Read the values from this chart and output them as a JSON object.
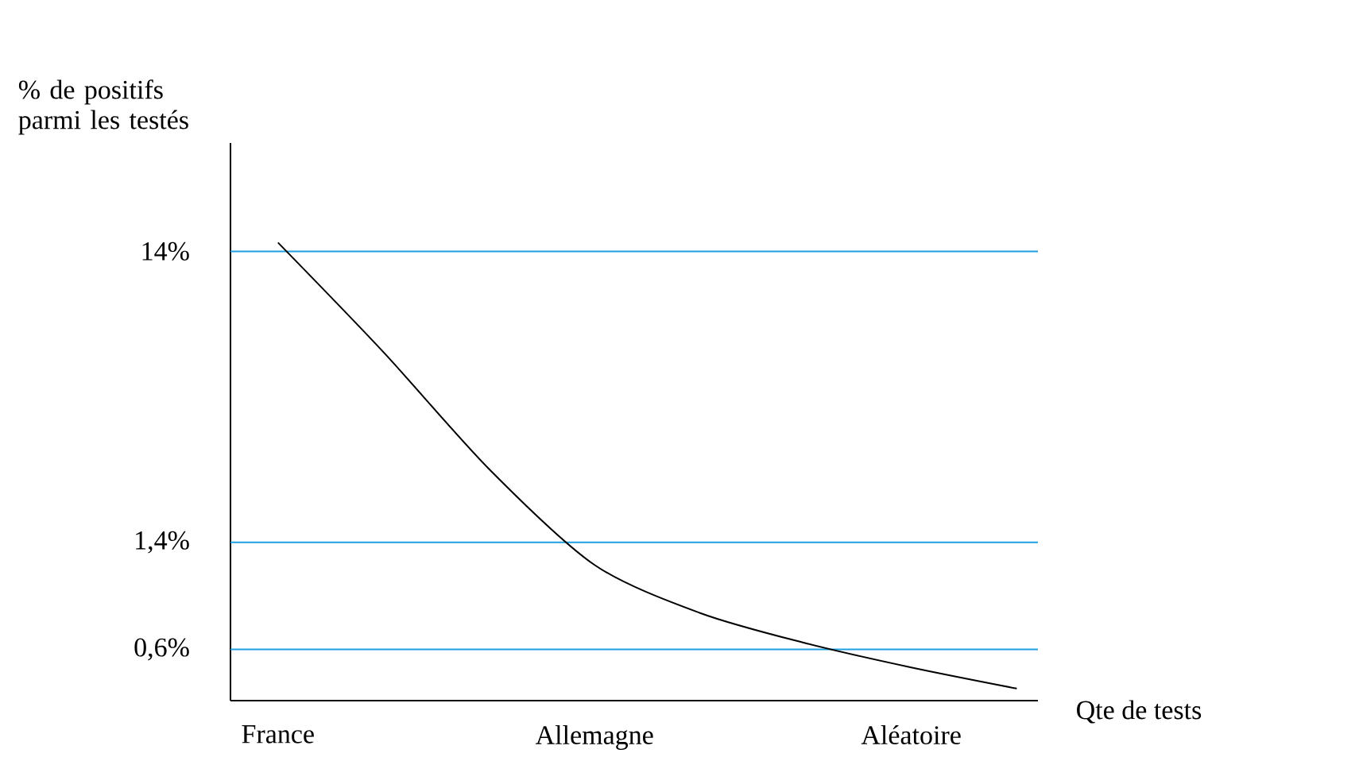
{
  "chart_data": {
    "type": "line",
    "ylabel": "% de positifs parmi les testés",
    "xlabel": "Qte de tests",
    "log": "y",
    "ylim": [
      0.4,
      33
    ],
    "categories": [
      "France",
      null,
      null,
      "Allemagne",
      null,
      null,
      "Aléatoire",
      null
    ],
    "yticks": [
      {
        "value": 0.6,
        "label": "0,6%"
      },
      {
        "value": 1.4,
        "label": "1,4%"
      },
      {
        "value": 14,
        "label": "14%"
      }
    ],
    "ref_lines": [
      {
        "axis": "y",
        "value": 14,
        "color": "#1ea0e0"
      },
      {
        "axis": "y",
        "value": 1.4,
        "color": "#1ea0e0"
      },
      {
        "axis": "y",
        "value": 0.6,
        "color": "#1ea0e0"
      }
    ],
    "series": [
      {
        "color": "#000000",
        "values": [
          15,
          6.3,
          2.5,
          1.17,
          0.8,
          0.63,
          0.52,
          0.44
        ]
      }
    ]
  }
}
